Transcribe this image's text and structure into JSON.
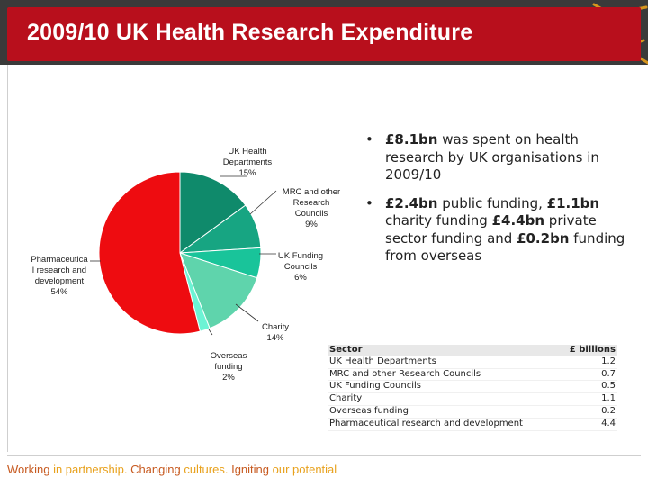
{
  "header": {
    "title": "2009/10 UK Health Research Expenditure"
  },
  "chart_data": {
    "type": "pie",
    "slices": [
      {
        "label_lines": [
          "UK Health",
          "Departments",
          "15%"
        ],
        "value": 15,
        "color": "#0f8a6b"
      },
      {
        "label_lines": [
          "MRC and other",
          "Research",
          "Councils",
          "9%"
        ],
        "value": 9,
        "color": "#17a582"
      },
      {
        "label_lines": [
          "UK Funding",
          "Councils",
          "6%"
        ],
        "value": 6,
        "color": "#19c49a"
      },
      {
        "label_lines": [
          "Charity",
          "14%"
        ],
        "value": 14,
        "color": "#5fd4ac"
      },
      {
        "label_lines": [
          "Overseas",
          "funding",
          "2%"
        ],
        "value": 2,
        "color": "#6cf3d4"
      },
      {
        "label_lines": [
          "Pharmaceutica",
          "l research and",
          "development",
          "54%"
        ],
        "value": 54,
        "color": "#ee0c10"
      }
    ]
  },
  "bullets": [
    {
      "strong": "£8.1bn",
      "rest": " was spent on health research by UK organisations in 2009/10"
    },
    {
      "html_parts": [
        {
          "b": "£2.4bn"
        },
        {
          "t": " public funding, "
        },
        {
          "b": "£1.1bn"
        },
        {
          "t": " charity funding "
        },
        {
          "b": "£4.4bn"
        },
        {
          "t": " private sector funding and "
        },
        {
          "b": "£0.2bn"
        },
        {
          "t": " funding from overseas"
        }
      ]
    }
  ],
  "table": {
    "headers": [
      "Sector",
      "£ billions"
    ],
    "rows": [
      [
        "UK Health Departments",
        "1.2"
      ],
      [
        "MRC and other Research Councils",
        "0.7"
      ],
      [
        "UK Funding Councils",
        "0.5"
      ],
      [
        "Charity",
        "1.1"
      ],
      [
        "Overseas funding",
        "0.2"
      ],
      [
        "Pharmaceutical research and development",
        "4.4"
      ]
    ]
  },
  "footer": {
    "part1": "Working",
    "part2": " in partnership. ",
    "part3": "Changing",
    "part4": " cultures. ",
    "part5": "Igniting",
    "part6": " our potential"
  },
  "colors": {
    "title_bg": "#b80f1c",
    "footer_text": "#e8a11c"
  }
}
